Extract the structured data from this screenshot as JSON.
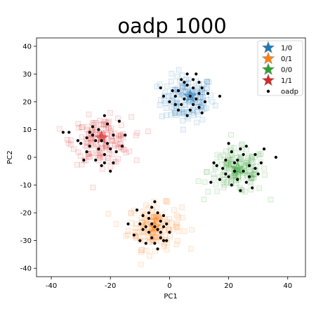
{
  "chart_data": {
    "type": "scatter",
    "title": "oadp 1000",
    "xlabel": "PC1",
    "ylabel": "PC2",
    "xlim": [
      -45,
      46
    ],
    "ylim": [
      -43,
      43
    ],
    "xticks": [
      -40,
      -20,
      0,
      20,
      40
    ],
    "yticks": [
      -40,
      -30,
      -20,
      -10,
      0,
      10,
      20,
      30,
      40
    ],
    "legend_position": "top-right",
    "grid": false,
    "series": [
      {
        "name": "1/0",
        "color": "#1f77b4",
        "marker": "square",
        "center": [
          6,
          21
        ],
        "spread": [
          4.5,
          4.2
        ],
        "count": 150,
        "centroid_marker": "star",
        "centroid": [
          7,
          22
        ]
      },
      {
        "name": "0/1",
        "color": "#ff7f0e",
        "marker": "square",
        "center": [
          -5,
          -25
        ],
        "spread": [
          4.5,
          4.0
        ],
        "count": 150,
        "centroid_marker": "star",
        "centroid": [
          -5,
          -25
        ]
      },
      {
        "name": "0/0",
        "color": "#2ca02c",
        "marker": "square",
        "center": [
          23,
          -5
        ],
        "spread": [
          5.0,
          4.0
        ],
        "count": 150,
        "centroid_marker": "star",
        "centroid": [
          23,
          -4
        ]
      },
      {
        "name": "1/1",
        "color": "#d62728",
        "marker": "square",
        "center": [
          -23,
          6
        ],
        "spread": [
          5.0,
          4.2
        ],
        "count": 150,
        "centroid_marker": "star",
        "centroid": [
          -23,
          7
        ]
      },
      {
        "name": "oadp",
        "color": "#000000",
        "marker": "dot",
        "points": [
          [
            6,
            26
          ],
          [
            3,
            24
          ],
          [
            8,
            28
          ],
          [
            10,
            23
          ],
          [
            4,
            19
          ],
          [
            7,
            17
          ],
          [
            9,
            21
          ],
          [
            2,
            22
          ],
          [
            5,
            27
          ],
          [
            12,
            20
          ],
          [
            11,
            25
          ],
          [
            1,
            24
          ],
          [
            6,
            15
          ],
          [
            8,
            19
          ],
          [
            3,
            17
          ],
          [
            10,
            18
          ],
          [
            13,
            23
          ],
          [
            4,
            28
          ],
          [
            9,
            30
          ],
          [
            -2,
            22
          ],
          [
            17,
            22
          ],
          [
            -3,
            25
          ],
          [
            7,
            22
          ],
          [
            5,
            21
          ],
          [
            11,
            16
          ],
          [
            2,
            19
          ],
          [
            8,
            25
          ],
          [
            6,
            30
          ],
          [
            0,
            20
          ],
          [
            10,
            27
          ],
          [
            -5,
            -25
          ],
          [
            -7,
            -22
          ],
          [
            -3,
            -27
          ],
          [
            -1,
            -24
          ],
          [
            -6,
            -29
          ],
          [
            -9,
            -26
          ],
          [
            -4,
            -20
          ],
          [
            -2,
            -30
          ],
          [
            -8,
            -31
          ],
          [
            -10,
            -24
          ],
          [
            -3,
            -23
          ],
          [
            -6,
            -18
          ],
          [
            -12,
            -28
          ],
          [
            0,
            -27
          ],
          [
            -4,
            -33
          ],
          [
            -14,
            -24
          ],
          [
            -7,
            -27
          ],
          [
            -2,
            -21
          ],
          [
            -5,
            -16
          ],
          [
            -9,
            -21
          ],
          [
            -1,
            -30
          ],
          [
            -6,
            -24
          ],
          [
            -11,
            -19
          ],
          [
            -3,
            -29
          ],
          [
            -8,
            -25
          ],
          [
            -4,
            -26
          ],
          [
            -10,
            -30
          ],
          [
            -2,
            -25
          ],
          [
            -7,
            -20
          ],
          [
            -5,
            -31
          ],
          [
            22,
            -2
          ],
          [
            25,
            -5
          ],
          [
            19,
            -1
          ],
          [
            27,
            -3
          ],
          [
            23,
            -8
          ],
          [
            20,
            -7
          ],
          [
            29,
            1
          ],
          [
            24,
            3
          ],
          [
            21,
            -10
          ],
          [
            26,
            -9
          ],
          [
            18,
            -4
          ],
          [
            30,
            -6
          ],
          [
            16,
            -3
          ],
          [
            28,
            -11
          ],
          [
            22,
            -5
          ],
          [
            25,
            1
          ],
          [
            20,
            5
          ],
          [
            31,
            -2
          ],
          [
            24,
            -12
          ],
          [
            17,
            -8
          ],
          [
            36,
            0
          ],
          [
            26,
            4
          ],
          [
            23,
            -1
          ],
          [
            15,
            -2
          ],
          [
            29,
            -4
          ],
          [
            21,
            2
          ],
          [
            27,
            -7
          ],
          [
            19,
            -6
          ],
          [
            32,
            3
          ],
          [
            14,
            -9
          ],
          [
            -23,
            6
          ],
          [
            -26,
            8
          ],
          [
            -20,
            3
          ],
          [
            -24,
            10
          ],
          [
            -22,
            1
          ],
          [
            -27,
            4
          ],
          [
            -19,
            8
          ],
          [
            -25,
            -1
          ],
          [
            -21,
            12
          ],
          [
            -28,
            7
          ],
          [
            -18,
            2
          ],
          [
            -23,
            -3
          ],
          [
            -30,
            5
          ],
          [
            -20,
            -5
          ],
          [
            -17,
            13
          ],
          [
            -26,
            11
          ],
          [
            -22,
            15
          ],
          [
            -34,
            9
          ],
          [
            -36,
            9
          ],
          [
            -15,
            8
          ],
          [
            -24,
            3
          ],
          [
            -29,
            -1
          ],
          [
            -21,
            5
          ],
          [
            -25,
            6
          ],
          [
            -19,
            -2
          ],
          [
            -27,
            9
          ],
          [
            -22,
            -2
          ],
          [
            -28,
            2
          ],
          [
            -16,
            4
          ],
          [
            -31,
            6
          ]
        ]
      }
    ]
  }
}
